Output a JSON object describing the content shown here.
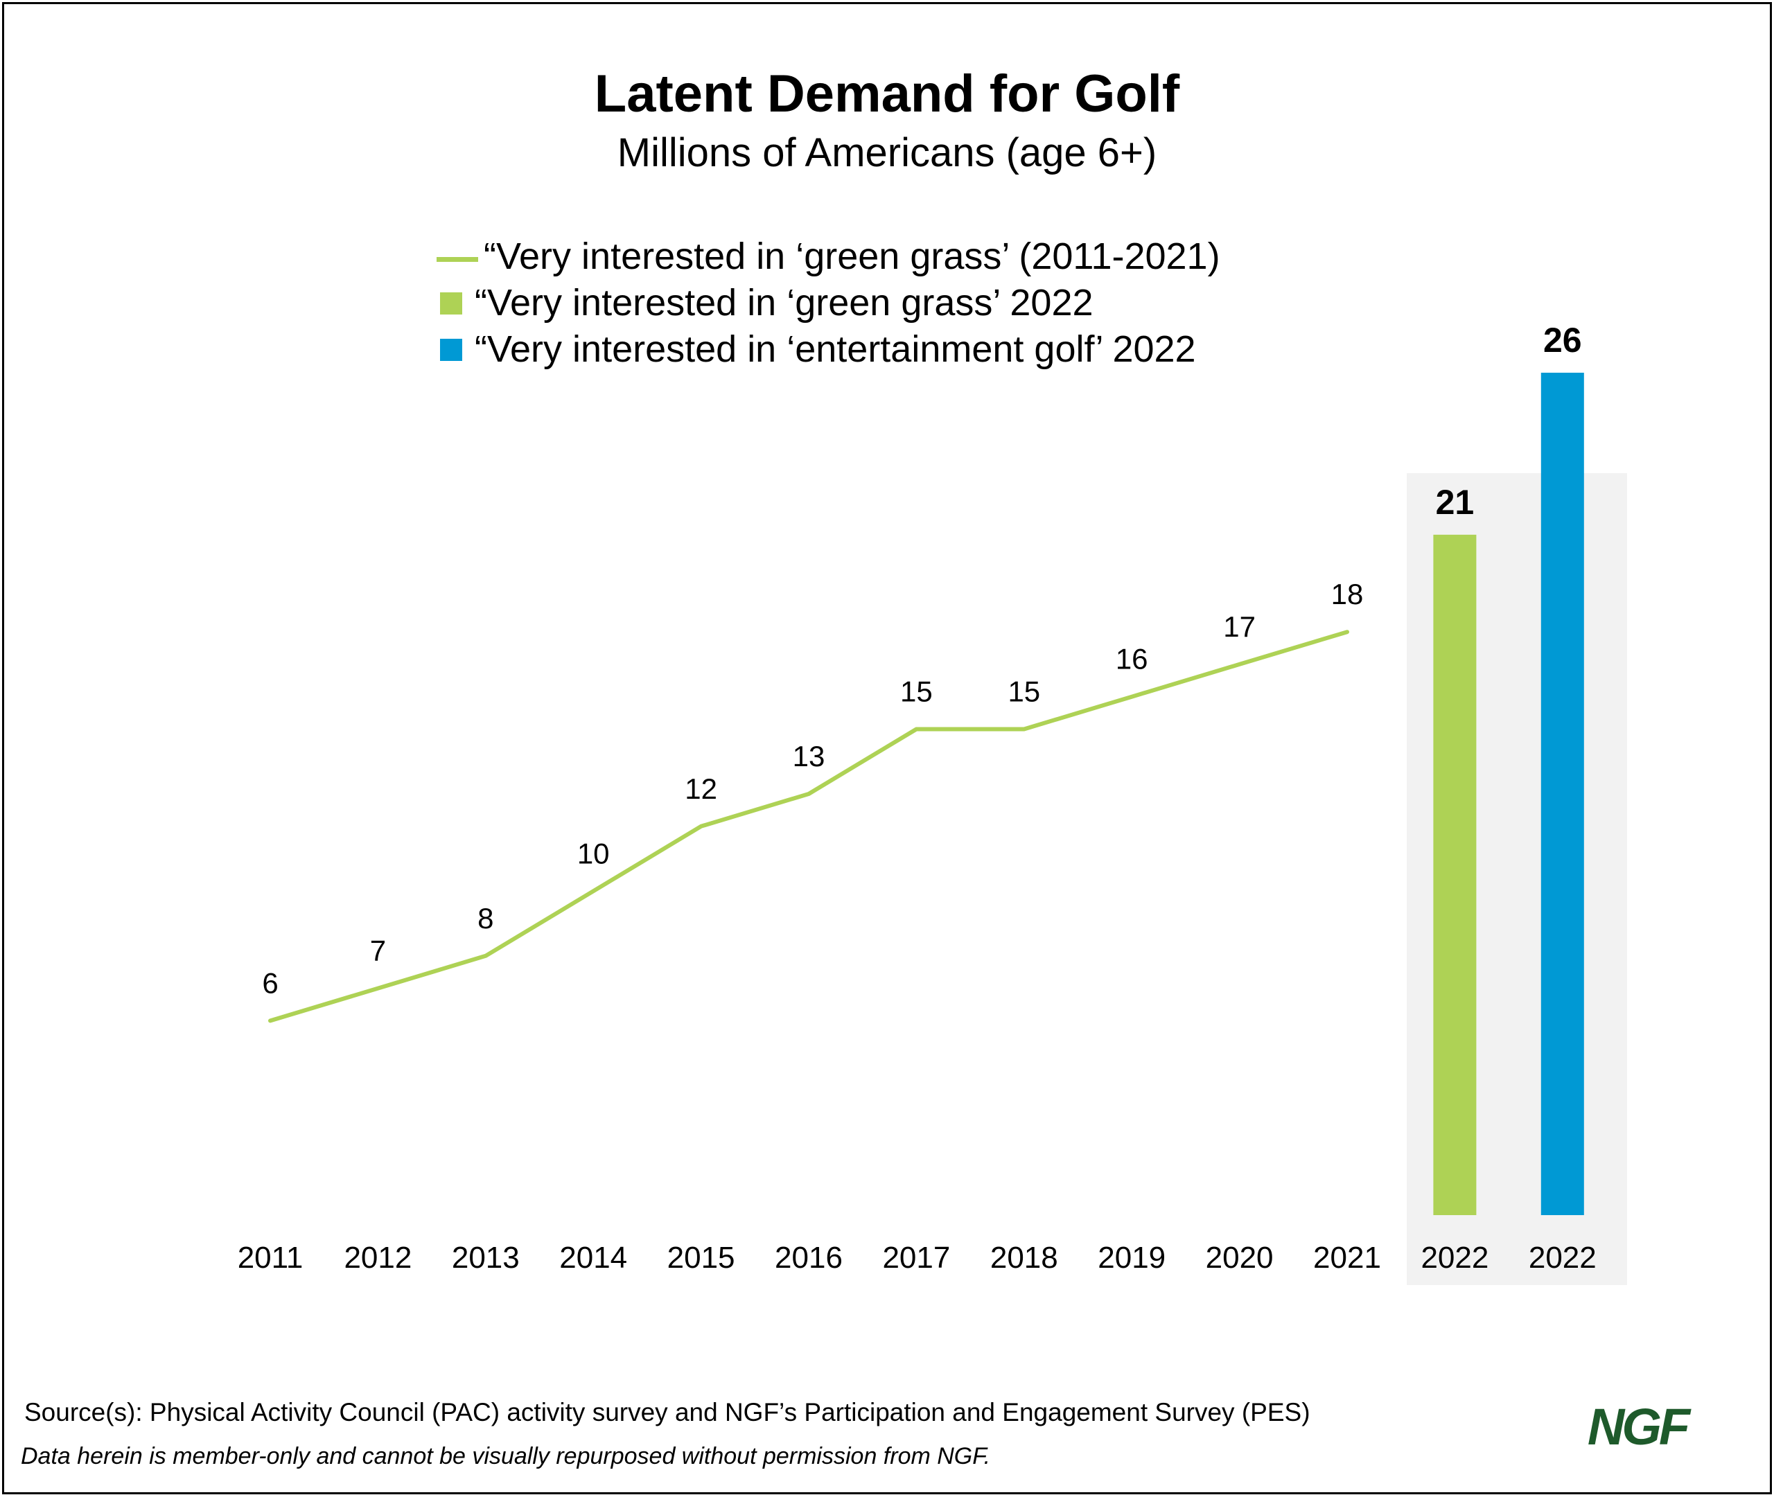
{
  "colors": {
    "green": "#AED255",
    "blue": "#0099D4",
    "panel": "#F2F2F2",
    "logo": "#1E5A2B"
  },
  "header": {
    "title": "Latent Demand for Golf",
    "subtitle": "Millions of Americans (age 6+)"
  },
  "legend": [
    {
      "label": "“Very interested in ‘green grass’ (2011-2021)",
      "marker": "line",
      "color": "#AED255"
    },
    {
      "label": "“Very interested in ‘green grass’ 2022",
      "marker": "box",
      "color": "#AED255"
    },
    {
      "label": "“Very interested in ‘entertainment golf’ 2022",
      "marker": "box",
      "color": "#0099D4"
    }
  ],
  "chart_data": {
    "type": "line",
    "title": "Latent Demand for Golf",
    "subtitle": "Millions of Americans (age 6+)",
    "xlabel": "",
    "ylabel": "",
    "ylim": [
      0,
      26
    ],
    "grid": false,
    "line_series": {
      "name": "“Very interested in ‘green grass’ (2011-2021)",
      "x": [
        "2011",
        "2012",
        "2013",
        "2014",
        "2015",
        "2016",
        "2017",
        "2018",
        "2019",
        "2020",
        "2021"
      ],
      "values": [
        6,
        7,
        8,
        10,
        12,
        13,
        15,
        15,
        16,
        17,
        18
      ],
      "labels": [
        "6",
        "7",
        "8",
        "10",
        "12",
        "13",
        "15",
        "15",
        "16",
        "17",
        "18"
      ]
    },
    "bar_series": [
      {
        "name": "“Very interested in ‘green grass’ 2022",
        "x": "2022",
        "value": 21,
        "label": "21",
        "color": "#AED255"
      },
      {
        "name": "“Very interested in ‘entertainment golf’ 2022",
        "x": "2022",
        "value": 26,
        "label": "26",
        "color": "#0099D4"
      }
    ]
  },
  "footer": {
    "source": "Source(s): Physical Activity Council (PAC) activity survey and NGF’s Participation and Engagement Survey (PES)",
    "disclaimer": "Data herein is member-only and cannot be visually repurposed without permission from NGF.",
    "logo_text": "NGF"
  }
}
